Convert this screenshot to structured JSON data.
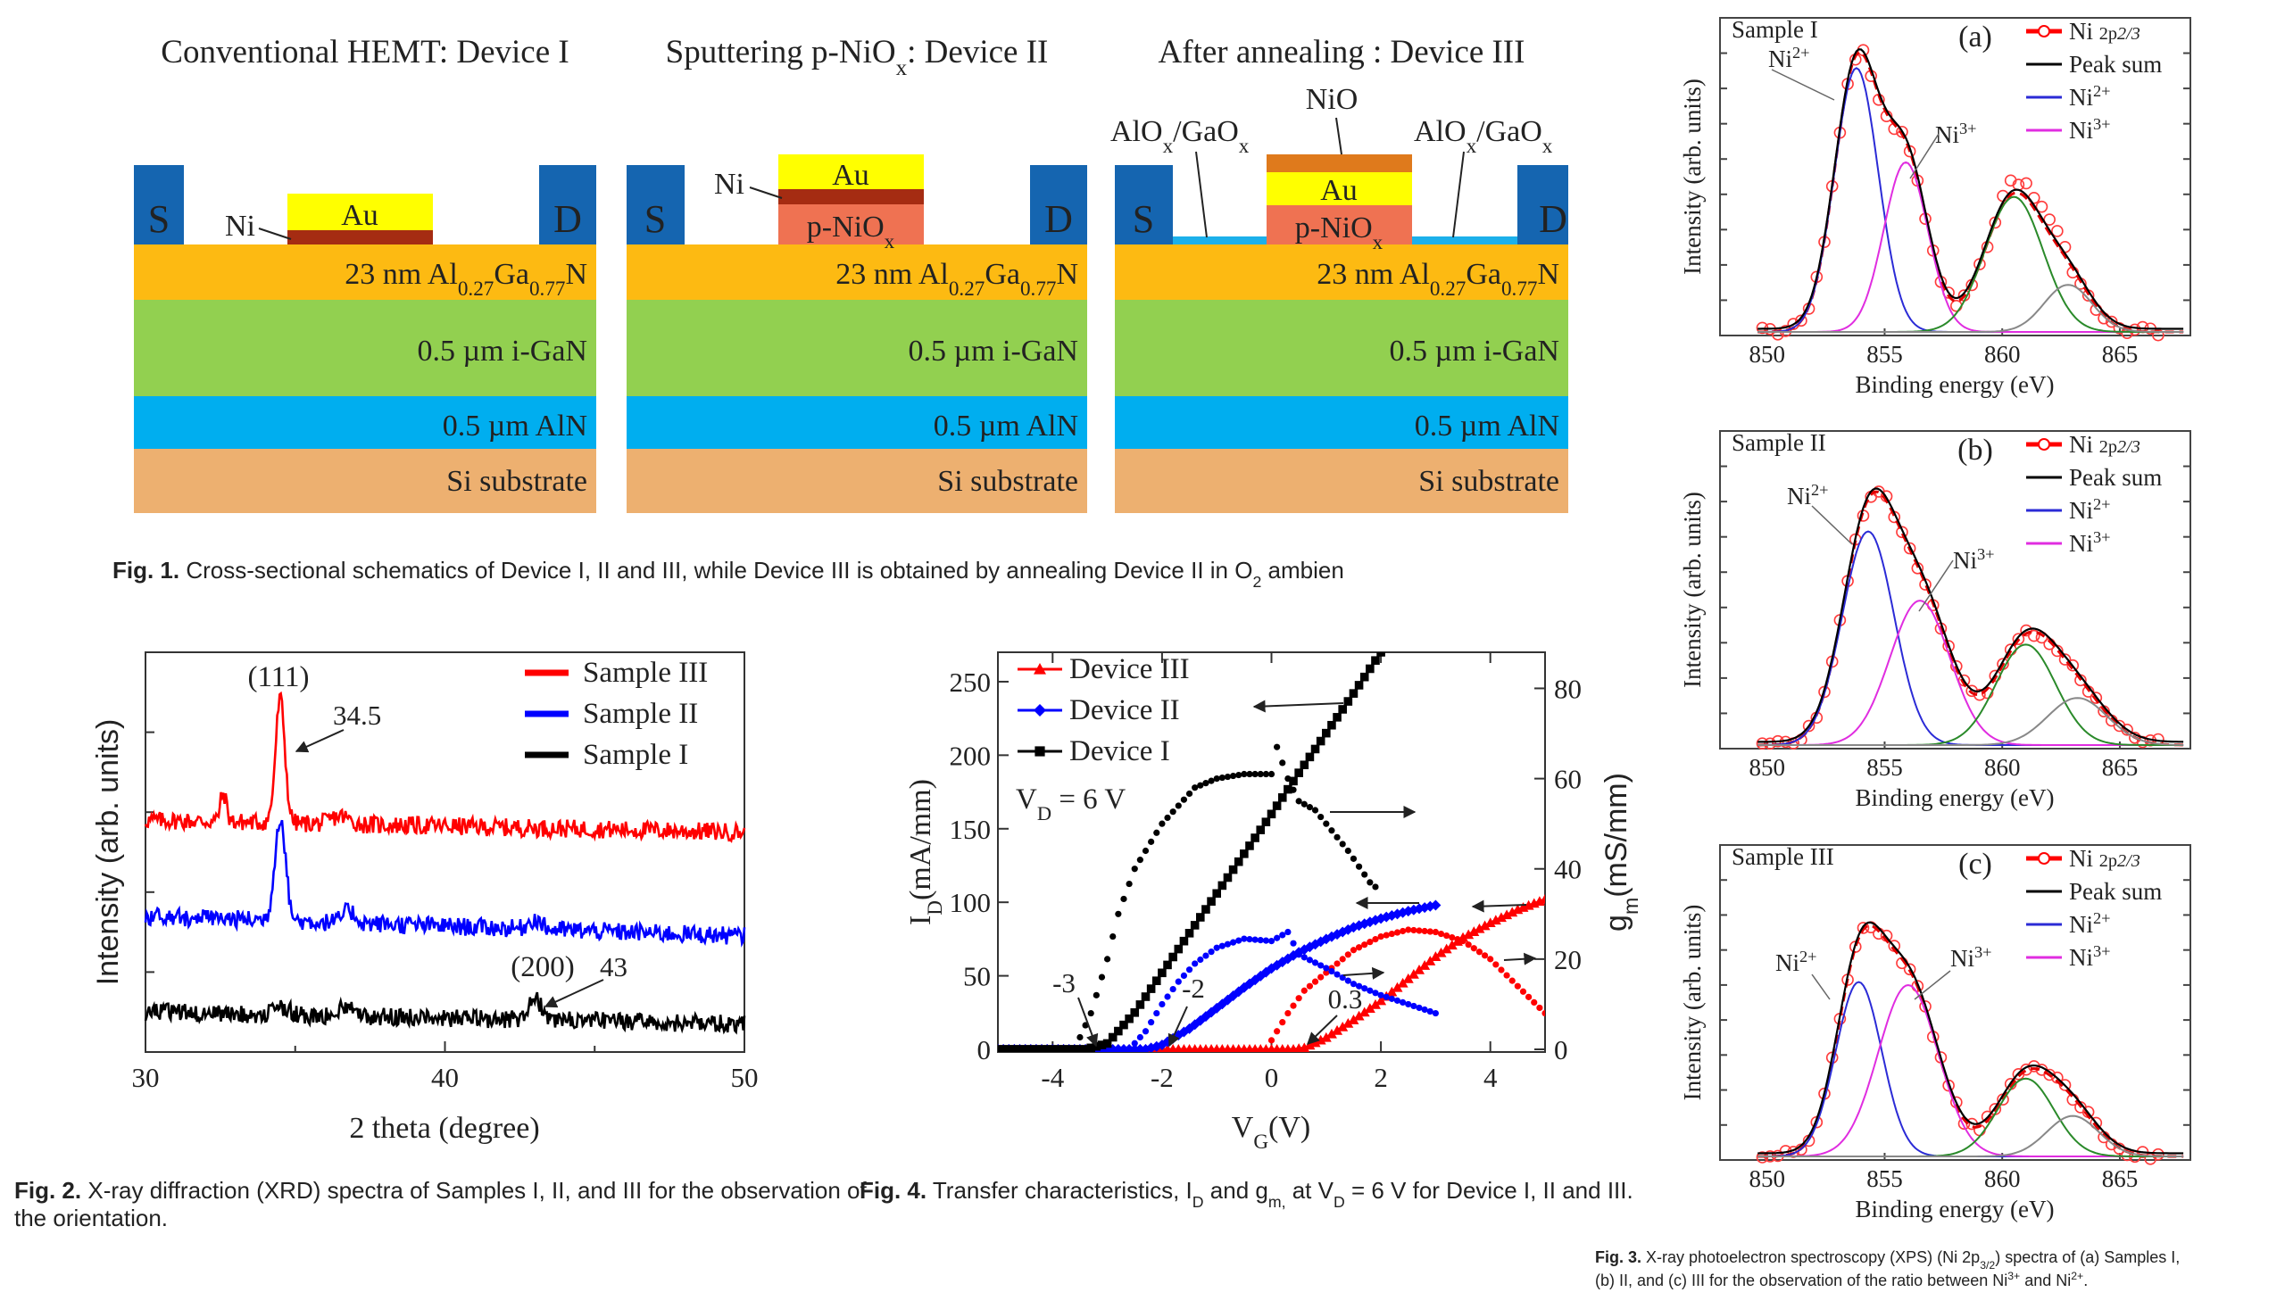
{
  "fig1": {
    "titles": [
      [
        {
          "t": "Conventional HEMT: Device I"
        }
      ],
      [
        {
          "t": "Sputtering p-NiO"
        },
        {
          "t": "x",
          "sub": 1
        },
        {
          "t": ": Device II"
        }
      ],
      [
        {
          "t": "After annealing : Device III"
        }
      ]
    ],
    "source_label": "S",
    "drain_label": "D",
    "ni_label": "Ni",
    "au_label": "Au",
    "pnio_label": [
      {
        "t": "p-NiO"
      },
      {
        "t": "x",
        "sub": 1
      }
    ],
    "nio_label": "NiO",
    "aloxgaox_label": [
      {
        "t": "AlO"
      },
      {
        "t": "x",
        "sub": 1
      },
      {
        "t": "/GaO"
      },
      {
        "t": "x",
        "sub": 1
      }
    ],
    "layers": {
      "algan": [
        {
          "t": "23 nm Al"
        },
        {
          "t": "0.27",
          "sub": 1
        },
        {
          "t": "Ga"
        },
        {
          "t": "0.77",
          "sub": 1
        },
        {
          "t": "N"
        }
      ],
      "gan": "0.5 µm i-GaN",
      "aln": "0.5 µm AlN",
      "si": "Si substrate"
    },
    "colors": {
      "contact": "#1565b0",
      "au": "#ffff00",
      "ni": "#a52c12",
      "pnio": "#ef7252",
      "nio": "#df7a1c",
      "alox": "#1cb0ea",
      "algan": "#fdba12",
      "gan": "#92d050",
      "aln": "#00aeef",
      "si": "#edb070"
    },
    "caption": {
      "label": "Fig. 1.",
      "text": [
        {
          "t": "  Cross-sectional schematics of Device I, II and III, while Device III is obtained by annealing Device II in O"
        },
        {
          "t": "2",
          "sub": 1
        },
        {
          "t": " ambien"
        }
      ]
    }
  },
  "chart_data": [
    {
      "id": "fig2",
      "type": "line",
      "xlabel": "2 theta (degree)",
      "ylabel": "Intensity (arb. units)",
      "xlim": [
        30,
        50
      ],
      "ylim": [
        0,
        1
      ],
      "xticks": [
        "30",
        "40",
        "50"
      ],
      "legend_position": "top-right",
      "series": [
        {
          "name": "Sample III",
          "color": "#ff0000",
          "baseline": [
            [
              30,
              0.58
            ],
            [
              50,
              0.55
            ]
          ],
          "peaks": [
            {
              "x": 32.6,
              "h": 0.07,
              "w": 0.15
            },
            {
              "x": 34.5,
              "h": 0.31,
              "w": 0.22
            },
            {
              "x": 36.5,
              "h": 0.02,
              "w": 0.4
            }
          ]
        },
        {
          "name": "Sample II",
          "color": "#0000ff",
          "baseline": [
            [
              30,
              0.34
            ],
            [
              50,
              0.29
            ]
          ],
          "peaks": [
            {
              "x": 34.5,
              "h": 0.26,
              "w": 0.25
            },
            {
              "x": 36.8,
              "h": 0.03,
              "w": 0.3
            },
            {
              "x": 43,
              "h": 0.025,
              "w": 0.3
            }
          ]
        },
        {
          "name": "Sample I",
          "color": "#000000",
          "baseline": [
            [
              30,
              0.1
            ],
            [
              50,
              0.07
            ]
          ],
          "peaks": [
            {
              "x": 34.5,
              "h": 0.02,
              "w": 0.4
            },
            {
              "x": 36.8,
              "h": 0.03,
              "w": 0.35
            },
            {
              "x": 43,
              "h": 0.055,
              "w": 0.3
            }
          ]
        }
      ],
      "annotations": {
        "peak111": "(111)",
        "peak111_pos": "34.5",
        "peak200": "(200)",
        "peak200_pos": "43"
      },
      "caption": {
        "label": "Fig. 2.",
        "line1": "  X-ray diffraction (XRD) spectra of Samples I, II, and III for the observation of",
        "line2": "the orientation."
      }
    },
    {
      "id": "fig4",
      "type": "line",
      "xlabel": [
        {
          "t": "V"
        },
        {
          "t": "G",
          "sub": 1
        },
        {
          "t": "(V)"
        }
      ],
      "ylabel_left": [
        {
          "t": "I"
        },
        {
          "t": "D",
          "sub": 1
        },
        {
          "t": "(mA/mm)"
        }
      ],
      "ylabel_right": [
        {
          "t": "g"
        },
        {
          "t": "m",
          "sub": 1
        },
        {
          "t": "(mS/mm)"
        }
      ],
      "xlim": [
        -5,
        5
      ],
      "ylim_left": [
        0,
        270
      ],
      "ylim_right": [
        0,
        88
      ],
      "xticks": [
        "-4",
        "-2",
        "0",
        "2",
        "4"
      ],
      "yticks_left": [
        "0",
        "50",
        "100",
        "150",
        "200",
        "250"
      ],
      "yticks_right": [
        "0",
        "20",
        "40",
        "60",
        "80"
      ],
      "legend_position": "top-left",
      "condition": [
        {
          "t": "V"
        },
        {
          "t": "D",
          "sub": 1
        },
        {
          "t": " = 6 V"
        }
      ],
      "series": [
        {
          "name": "Device III",
          "color": "#ff0000",
          "marker": "triangle",
          "id_x": [
            -5,
            0.4,
            0.6,
            1,
            1.5,
            2,
            2.5,
            3,
            3.5,
            4,
            4.5,
            5
          ],
          "id_y": [
            0,
            0,
            1,
            8,
            20,
            33,
            48,
            63,
            76,
            86,
            95,
            102
          ],
          "gm_x": [
            0,
            0.3,
            0.6,
            1,
            1.5,
            2,
            2.5,
            3,
            3.5,
            4,
            4.5,
            5
          ],
          "gm_y": [
            2,
            8,
            13,
            17,
            22,
            25,
            26.5,
            26,
            24,
            20,
            14,
            8
          ]
        },
        {
          "name": "Device II",
          "color": "#0000ff",
          "marker": "diamond",
          "id_x": [
            -5,
            -2.3,
            -2,
            -1.5,
            -1,
            -0.5,
            0,
            0.5,
            1,
            1.5,
            2,
            2.5,
            3
          ],
          "id_y": [
            0,
            0,
            3,
            14,
            28,
            42,
            55,
            66,
            75,
            83,
            89,
            94,
            98
          ],
          "gm_x": [
            -2.6,
            -2.3,
            -2,
            -1.7,
            -1.4,
            -1,
            -0.5,
            0,
            0.3,
            0.5,
            1,
            1.5,
            2,
            2.5,
            3
          ],
          "gm_y": [
            0,
            4,
            10,
            15,
            19,
            22.5,
            24.5,
            24,
            26,
            21,
            18,
            14.5,
            12,
            10,
            8
          ]
        },
        {
          "name": "Device I",
          "color": "#000000",
          "marker": "square",
          "id_x": [
            -5,
            -3.4,
            -3,
            -2.5,
            -2,
            -1.5,
            -1,
            -0.5,
            0,
            0.5,
            1,
            1.5,
            2
          ],
          "id_y": [
            0,
            0,
            4,
            25,
            52,
            79,
            106,
            133,
            160,
            188,
            215,
            242,
            270
          ],
          "gm_x": [
            -3.6,
            -3.3,
            -3,
            -2.8,
            -2.5,
            -2.2,
            -2,
            -1.7,
            -1.4,
            -1,
            -0.5,
            0,
            0.1,
            0.3,
            0.5,
            0.8,
            1,
            1.4,
            1.8,
            1.9
          ],
          "gm_y": [
            0,
            8,
            20,
            30,
            40,
            46,
            50,
            54,
            58,
            60,
            61,
            61,
            67,
            60,
            55,
            53,
            50,
            44,
            37,
            36
          ]
        }
      ],
      "threshold_labels": [
        "-3",
        "-2",
        "0.3"
      ],
      "caption": [
        {
          "t": "Fig. 4.",
          "b": 1
        },
        {
          "t": "  Transfer characteristics, I"
        },
        {
          "t": "D",
          "sub": 1
        },
        {
          "t": " and g"
        },
        {
          "t": "m,",
          "sub": 1
        },
        {
          "t": " at V"
        },
        {
          "t": "D",
          "sub": 1
        },
        {
          "t": " = 6 V for Device I, II and III."
        }
      ]
    },
    {
      "id": "fig3",
      "type": "line",
      "xlabel": "Binding energy (eV)",
      "ylabel": "Intensity (arb. units)",
      "xlim": [
        848,
        868
      ],
      "ylim": [
        0,
        1
      ],
      "xticks": [
        "850",
        "855",
        "860",
        "865"
      ],
      "legend": [
        {
          "label": [
            {
              "t": "Ni "
            },
            {
              "t": "2p",
              "small": 1
            },
            {
              "t": "2/3",
              "small": 1,
              "i": 1
            }
          ],
          "color": "#ff0000",
          "style": "dash-circle"
        },
        {
          "label": [
            {
              "t": "Peak sum"
            }
          ],
          "color": "#000000"
        },
        {
          "label": [
            {
              "t": "Ni"
            },
            {
              "t": "2+",
              "sup": 1
            }
          ],
          "color": "#2b2bd6"
        },
        {
          "label": [
            {
              "t": "Ni"
            },
            {
              "t": "3+",
              "sup": 1
            }
          ],
          "color": "#e02de0"
        }
      ],
      "ion_labels": {
        "ni2": [
          {
            "t": "Ni"
          },
          {
            "t": "2+",
            "sup": 1
          }
        ],
        "ni3": [
          {
            "t": "Ni"
          },
          {
            "t": "3+",
            "sup": 1
          }
        ]
      },
      "panels": [
        {
          "tag": "(a)",
          "sample": "Sample I",
          "components": [
            {
              "name": "Ni2+",
              "color": "#2b2bd6",
              "x": 853.8,
              "h": 0.84,
              "fwhm": 2.2
            },
            {
              "name": "Ni3+",
              "color": "#e02de0",
              "x": 855.9,
              "h": 0.54,
              "fwhm": 2.2
            },
            {
              "color": "#2a8a2a",
              "x": 860.5,
              "h": 0.43,
              "fwhm": 2.9
            },
            {
              "color": "#888888",
              "x": 862.8,
              "h": 0.15,
              "fwhm": 2.4
            }
          ]
        },
        {
          "tag": "(b)",
          "sample": "Sample II",
          "components": [
            {
              "name": "Ni2+",
              "color": "#2b2bd6",
              "x": 854.3,
              "h": 0.68,
              "fwhm": 2.6
            },
            {
              "name": "Ni3+",
              "color": "#e02de0",
              "x": 856.5,
              "h": 0.46,
              "fwhm": 3.0
            },
            {
              "color": "#2a8a2a",
              "x": 861.0,
              "h": 0.32,
              "fwhm": 3.0
            },
            {
              "color": "#888888",
              "x": 863.2,
              "h": 0.15,
              "fwhm": 3.0
            }
          ]
        },
        {
          "tag": "(c)",
          "sample": "Sample III",
          "components": [
            {
              "name": "Ni2+",
              "color": "#2b2bd6",
              "x": 853.9,
              "h": 0.56,
              "fwhm": 2.3
            },
            {
              "name": "Ni3+",
              "color": "#e02de0",
              "x": 856.0,
              "h": 0.55,
              "fwhm": 3.0
            },
            {
              "color": "#2a8a2a",
              "x": 861.0,
              "h": 0.25,
              "fwhm": 2.8
            },
            {
              "color": "#888888",
              "x": 863.0,
              "h": 0.13,
              "fwhm": 2.6
            }
          ]
        }
      ],
      "caption": {
        "line1": [
          {
            "t": "Fig. 3.",
            "b": 1
          },
          {
            "t": "  X-ray photoelectron spectroscopy (XPS) (Ni 2p"
          },
          {
            "t": "3/2",
            "sub": 1
          },
          {
            "t": ") spectra of (a) Samples I,"
          }
        ],
        "line2": [
          {
            "t": "(b) II, and (c) III for the observation of the ratio between Ni"
          },
          {
            "t": "3+",
            "sup": 1
          },
          {
            "t": " and Ni"
          },
          {
            "t": "2+",
            "sup": 1
          },
          {
            "t": "."
          }
        ]
      }
    }
  ]
}
